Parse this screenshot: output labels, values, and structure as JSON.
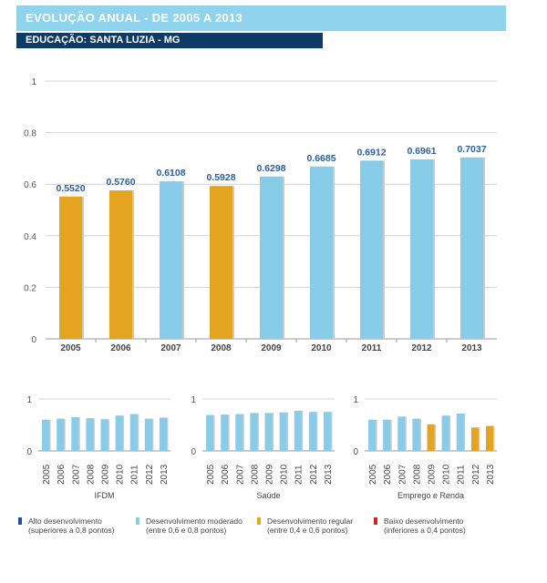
{
  "header": {
    "title": "EVOLUÇÃO ANUAL - DE 2005 A 2013",
    "subtitle": "EDUCAÇÃO: SANTA LUZIA - MG"
  },
  "colors": {
    "title_bg": "#8fd3ec",
    "subtitle_bg": "#0e3a66",
    "alto": "#1a4fa3",
    "moderado": "#87cdea",
    "regular": "#e4a420",
    "baixo": "#d0261d",
    "value_label": "#2a5e9e"
  },
  "chart_data": [
    {
      "type": "bar",
      "title": "",
      "categories": [
        "2005",
        "2006",
        "2007",
        "2008",
        "2009",
        "2010",
        "2011",
        "2012",
        "2013"
      ],
      "values": [
        0.552,
        0.576,
        0.6108,
        0.5928,
        0.6298,
        0.6685,
        0.6912,
        0.6961,
        0.7037
      ],
      "value_labels": [
        "0.5520",
        "0.5760",
        "0.6108",
        "0.5928",
        "0.6298",
        "0.6685",
        "0.6912",
        "0.6961",
        "0.7037"
      ],
      "bar_colors": [
        "regular",
        "regular",
        "moderado",
        "regular",
        "moderado",
        "moderado",
        "moderado",
        "moderado",
        "moderado"
      ],
      "ylim": [
        0,
        1
      ],
      "yticks": [
        "0",
        "0.2",
        "0.4",
        "0.6",
        "0.8",
        "1"
      ],
      "grid": true
    },
    {
      "type": "bar",
      "xlabel": "IFDM",
      "categories": [
        "2005",
        "2006",
        "2007",
        "2008",
        "2009",
        "2010",
        "2011",
        "2012",
        "2013"
      ],
      "values": [
        0.6,
        0.62,
        0.65,
        0.63,
        0.61,
        0.68,
        0.71,
        0.62,
        0.64
      ],
      "bar_colors": [
        "moderado",
        "moderado",
        "moderado",
        "moderado",
        "moderado",
        "moderado",
        "moderado",
        "moderado",
        "moderado"
      ],
      "ylim": [
        0,
        1
      ],
      "yticks": [
        "0",
        "1"
      ],
      "grid": true
    },
    {
      "type": "bar",
      "xlabel": "Saúde",
      "categories": [
        "2005",
        "2006",
        "2007",
        "2008",
        "2009",
        "2010",
        "2011",
        "2012",
        "2013"
      ],
      "values": [
        0.69,
        0.7,
        0.71,
        0.73,
        0.73,
        0.74,
        0.77,
        0.75,
        0.75
      ],
      "bar_colors": [
        "moderado",
        "moderado",
        "moderado",
        "moderado",
        "moderado",
        "moderado",
        "moderado",
        "moderado",
        "moderado"
      ],
      "ylim": [
        0,
        1
      ],
      "yticks": [
        "0",
        "1"
      ],
      "grid": true
    },
    {
      "type": "bar",
      "xlabel": "Emprego e Renda",
      "categories": [
        "2005",
        "2006",
        "2007",
        "2008",
        "2009",
        "2010",
        "2011",
        "2012",
        "2013"
      ],
      "values": [
        0.6,
        0.6,
        0.66,
        0.62,
        0.51,
        0.68,
        0.72,
        0.45,
        0.48
      ],
      "bar_colors": [
        "moderado",
        "moderado",
        "moderado",
        "moderado",
        "regular",
        "moderado",
        "moderado",
        "regular",
        "regular"
      ],
      "ylim": [
        0,
        1
      ],
      "yticks": [
        "0",
        "1"
      ],
      "grid": true
    }
  ],
  "legend": [
    {
      "key": "alto",
      "line1": "Alto desenvolvimento",
      "line2": "(superiores a 0,8 pontos)"
    },
    {
      "key": "moderado",
      "line1": "Desenvolvimento moderado",
      "line2": "(entre 0,6 e 0,8 pontos)"
    },
    {
      "key": "regular",
      "line1": "Desenvolvimento regular",
      "line2": "(entre 0,4 e 0,6 pontos)"
    },
    {
      "key": "baixo",
      "line1": "Baixo desenvolvimento",
      "line2": "(inferiores a 0,4 pontos)"
    }
  ]
}
